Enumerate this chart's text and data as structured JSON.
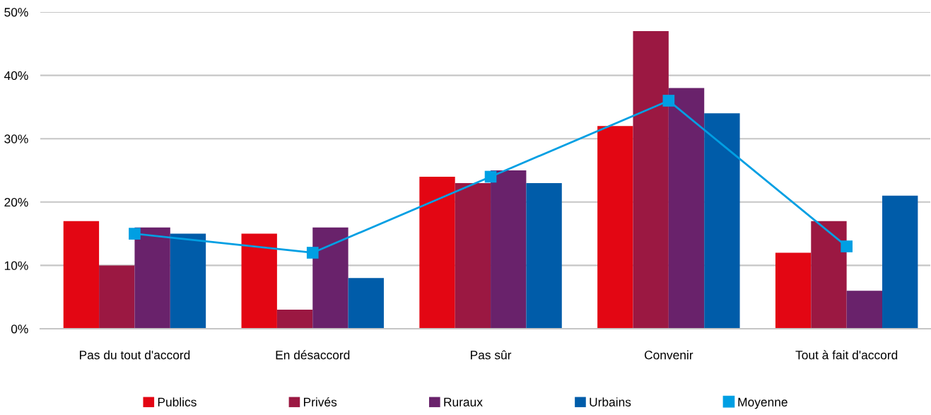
{
  "chart_data": {
    "type": "bar",
    "categories": [
      "Pas du tout d'accord",
      "En désaccord",
      "Pas sûr",
      "Convenir",
      "Tout à fait d'accord"
    ],
    "series": [
      {
        "name": "Publics",
        "color": "#e30613",
        "values": [
          17,
          15,
          24,
          32,
          12
        ]
      },
      {
        "name": "Privés",
        "color": "#9b1842",
        "values": [
          10,
          3,
          23,
          47,
          17
        ]
      },
      {
        "name": "Ruraux",
        "color": "#69226b",
        "values": [
          16,
          16,
          25,
          38,
          6
        ]
      },
      {
        "name": "Urbains",
        "color": "#005ca9",
        "values": [
          15,
          8,
          23,
          34,
          21
        ]
      },
      {
        "name": "Moyenne",
        "type": "line",
        "color": "#009fe3",
        "marker": "square",
        "values": [
          15,
          12,
          24,
          36,
          13
        ]
      }
    ],
    "ylim": [
      0,
      50
    ],
    "yticks": [
      {
        "value": 0,
        "label": "0%"
      },
      {
        "value": 10,
        "label": "10%"
      },
      {
        "value": 20,
        "label": "20%"
      },
      {
        "value": 30,
        "label": "30%"
      },
      {
        "value": 40,
        "label": "40%"
      },
      {
        "value": 50,
        "label": "50%"
      }
    ],
    "grid": "y",
    "legend": "bottom"
  }
}
